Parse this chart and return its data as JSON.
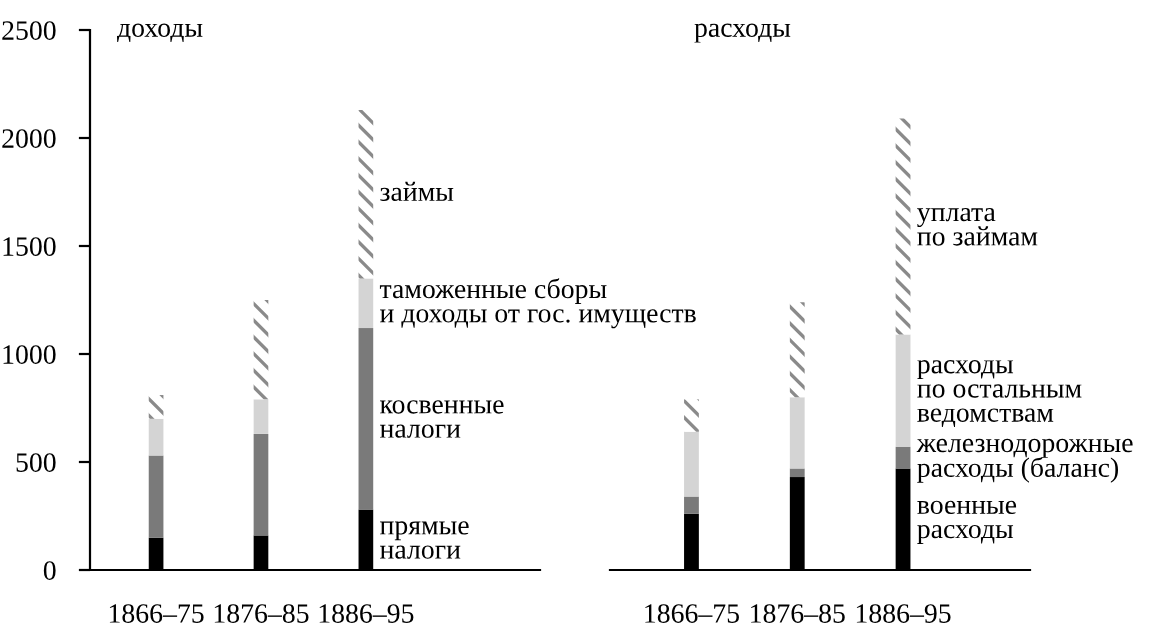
{
  "chart_data": [
    {
      "type": "bar",
      "title": "доходы",
      "stacked": true,
      "categories": [
        "1866–75",
        "1876–85",
        "1886–95"
      ],
      "ylim": [
        0,
        2500
      ],
      "yticks": [
        0,
        500,
        1000,
        1500,
        2000,
        2500
      ],
      "grid": false,
      "legend": false,
      "series": [
        {
          "name": "прямые\nналоги",
          "color": "#000000",
          "values": [
            150,
            160,
            280
          ]
        },
        {
          "name": "косвенные\nналоги",
          "color": "#7a7a7a",
          "values": [
            380,
            470,
            840
          ]
        },
        {
          "name": "таможенные сборы\nи доходы от гос. имуществ",
          "color": "#d4d4d4",
          "values": [
            170,
            160,
            230
          ]
        },
        {
          "name": "займы",
          "color": "#8a8a8a",
          "values": [
            110,
            460,
            780
          ]
        }
      ]
    },
    {
      "type": "bar",
      "title": "расходы",
      "stacked": true,
      "categories": [
        "1866–75",
        "1876–85",
        "1886–95"
      ],
      "ylim": [
        0,
        2500
      ],
      "tick_labels": "x",
      "grid": false,
      "legend": false,
      "series": [
        {
          "name": "военные\nрасходы",
          "color": "#000000",
          "values": [
            260,
            430,
            470
          ]
        },
        {
          "name": "железнодорожные\nрасходы (баланс)",
          "color": "#7a7a7a",
          "values": [
            80,
            40,
            100
          ]
        },
        {
          "name": "расходы\nпо остальным\nведомствам",
          "color": "#d4d4d4",
          "values": [
            300,
            330,
            520
          ]
        },
        {
          "name": "уплата\nпо займам",
          "color": "#8a8a8a",
          "values": [
            150,
            440,
            1000
          ]
        }
      ]
    }
  ]
}
